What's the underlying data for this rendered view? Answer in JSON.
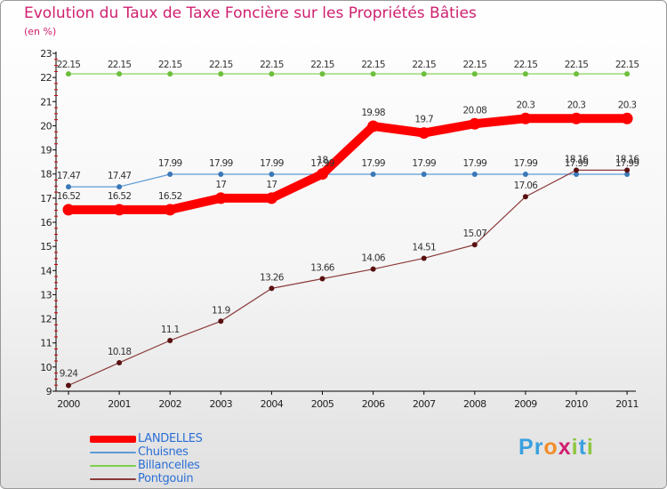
{
  "header": {
    "title": "Evolution du Taux de Taxe Foncière sur les Propriétés Bâties",
    "subtitle": "(en %)"
  },
  "brand": {
    "letters": [
      "P",
      "r",
      "o",
      "x",
      "i",
      "t",
      "i"
    ],
    "colors": [
      "#3aa0df",
      "#3aa0df",
      "#f28c28",
      "#d0206f",
      "#8dc63f",
      "#3aa0df",
      "#8dc63f"
    ]
  },
  "chart_data": {
    "type": "line",
    "title": "Evolution du Taux de Taxe Foncière sur les Propriétés Bâties",
    "ylabel": "(en %)",
    "xlabel": "",
    "x": [
      "2000",
      "2001",
      "2002",
      "2003",
      "2004",
      "2005",
      "2006",
      "2007",
      "2008",
      "2009",
      "2010",
      "2011"
    ],
    "ylim": [
      9,
      23
    ],
    "yticks": [
      9,
      10,
      11,
      12,
      13,
      14,
      15,
      16,
      17,
      18,
      19,
      20,
      21,
      22,
      23
    ],
    "grid": false,
    "series": [
      {
        "name": "LANDELLES",
        "color": "#ff0000",
        "emphasis": true,
        "values": [
          16.52,
          16.52,
          16.52,
          17,
          17,
          18,
          19.98,
          19.7,
          20.08,
          20.3,
          20.3,
          20.3
        ],
        "labels": [
          "16.52",
          "16.52",
          "16.52",
          "17",
          "17",
          "18",
          "19.98",
          "19.7",
          "20.08",
          "20.3",
          "20.3",
          "20.3"
        ]
      },
      {
        "name": "Chuisnes",
        "color": "#5b9bd5",
        "point_color": "#3a78b8",
        "emphasis": false,
        "values": [
          17.47,
          17.47,
          17.99,
          17.99,
          17.99,
          17.99,
          17.99,
          17.99,
          17.99,
          17.99,
          17.99,
          17.99
        ],
        "labels": [
          "17.47",
          "17.47",
          "17.99",
          "17.99",
          "17.99",
          "17.99",
          "17.99",
          "17.99",
          "17.99",
          "17.99",
          "17.99",
          "17.99"
        ]
      },
      {
        "name": "Billancelles",
        "color": "#7ccf4a",
        "point_color": "#6cbf3a",
        "emphasis": false,
        "values": [
          22.15,
          22.15,
          22.15,
          22.15,
          22.15,
          22.15,
          22.15,
          22.15,
          22.15,
          22.15,
          22.15,
          22.15
        ],
        "labels": [
          "22.15",
          "22.15",
          "22.15",
          "22.15",
          "22.15",
          "22.15",
          "22.15",
          "22.15",
          "22.15",
          "22.15",
          "22.15",
          "22.15"
        ]
      },
      {
        "name": "Pontgouin",
        "color": "#8b3a3a",
        "point_color": "#5a1010",
        "emphasis": false,
        "values": [
          9.24,
          10.18,
          11.1,
          11.9,
          13.26,
          13.66,
          14.06,
          14.51,
          15.07,
          17.06,
          18.16,
          18.16
        ],
        "labels": [
          "9.24",
          "10.18",
          "11.1",
          "11.9",
          "13.26",
          "13.66",
          "14.06",
          "14.51",
          "15.07",
          "17.06",
          "18.16",
          "18.16"
        ]
      }
    ]
  }
}
